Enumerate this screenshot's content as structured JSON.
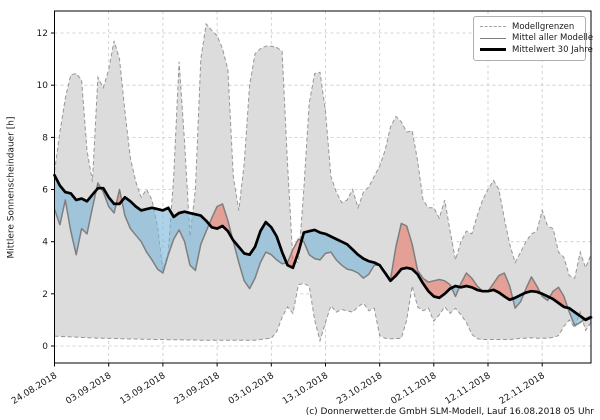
{
  "footer": "(c) Donnerwetter.de GmbH SLM-Modell, Lauf 16.08.2018 05 Uhr",
  "chart_data": {
    "type": "line",
    "title": "",
    "ylabel": "Mittlere Sonnenscheindauer [h]",
    "xlabel": "",
    "grid": true,
    "legend_position": "top-right",
    "legend": [
      "Modellgrenzen",
      "Mittel aller Modelle",
      "Mittelwert 30 Jahre"
    ],
    "y_ticks": [
      0,
      2,
      4,
      6,
      8,
      10,
      12
    ],
    "ylim": [
      -0.65,
      12.85
    ],
    "x_tick_labels": [
      "24.08.2018",
      "03.09.2018",
      "13.09.2018",
      "23.09.2018",
      "03.10.2018",
      "13.10.2018",
      "23.10.2018",
      "02.11.2018",
      "12.11.2018",
      "22.11.2018"
    ],
    "x_tick_days": [
      0,
      10,
      20,
      30,
      40,
      50,
      60,
      70,
      80,
      90
    ],
    "x_unit": "days since 24.08.2018, daily values",
    "x_days_total": 99,
    "colors": {
      "band_fill": "#dcdcdc",
      "bound_line": "#969696",
      "model_mean_line": "#7f7f7f",
      "climate_mean_line": "#000000",
      "below_fill": "rgba(120,180,215,0.60)",
      "above_fill": "rgba(235,110,95,0.55)",
      "gridline": "#c9c9c9"
    },
    "series": [
      {
        "name": "Modellgrenzen (obere Grenze)",
        "role": "model_max",
        "values": [
          6.7,
          8.2,
          9.5,
          10.4,
          10.45,
          10.2,
          7.5,
          6.3,
          10.3,
          9.9,
          10.6,
          11.7,
          11.0,
          9.0,
          7.2,
          6.3,
          5.7,
          6.0,
          5.6,
          4.6,
          2.9,
          3.6,
          6.5,
          10.9,
          7.8,
          4.2,
          6.0,
          11.0,
          12.35,
          12.1,
          11.9,
          11.4,
          10.6,
          6.5,
          5.2,
          7.0,
          10.0,
          11.2,
          11.4,
          11.5,
          11.5,
          11.45,
          11.3,
          7.0,
          3.3,
          3.2,
          6.0,
          9.3,
          10.45,
          10.5,
          9.0,
          6.5,
          5.9,
          5.5,
          5.6,
          6.0,
          5.3,
          5.9,
          6.1,
          6.5,
          6.9,
          7.5,
          8.4,
          8.8,
          8.6,
          8.2,
          8.25,
          7.1,
          5.6,
          5.3,
          5.3,
          4.9,
          5.6,
          4.4,
          3.3,
          4.0,
          4.4,
          4.3,
          5.0,
          5.6,
          6.0,
          6.35,
          6.0,
          4.9,
          3.9,
          3.2,
          3.6,
          4.0,
          4.3,
          4.4,
          5.2,
          4.6,
          4.5,
          3.6,
          3.4,
          2.7,
          2.6,
          3.6,
          3.0,
          3.5
        ]
      },
      {
        "name": "Modellgrenzen (untere Grenze)",
        "role": "model_min",
        "values": [
          0.38,
          0.37,
          0.36,
          0.35,
          0.34,
          0.33,
          0.32,
          0.31,
          0.3,
          0.3,
          0.29,
          0.29,
          0.28,
          0.28,
          0.27,
          0.27,
          0.26,
          0.26,
          0.25,
          0.25,
          0.25,
          0.24,
          0.24,
          0.24,
          0.23,
          0.23,
          0.23,
          0.22,
          0.22,
          0.22,
          0.22,
          0.22,
          0.22,
          0.22,
          0.22,
          0.22,
          0.22,
          0.22,
          0.25,
          0.28,
          0.3,
          0.55,
          1.1,
          1.5,
          1.25,
          2.35,
          2.4,
          2.3,
          1.0,
          0.2,
          0.9,
          1.55,
          1.3,
          1.4,
          1.35,
          1.3,
          1.5,
          1.65,
          1.35,
          1.45,
          0.4,
          0.3,
          0.28,
          0.28,
          0.3,
          1.0,
          2.3,
          1.5,
          1.35,
          1.45,
          0.95,
          1.2,
          1.5,
          1.25,
          1.45,
          1.2,
          0.9,
          0.45,
          0.28,
          0.25,
          0.25,
          0.25,
          0.25,
          0.25,
          0.25,
          0.27,
          0.3,
          0.3,
          0.32,
          0.3,
          0.3,
          0.3,
          0.33,
          0.4,
          0.75,
          1.0,
          0.7,
          1.3,
          0.6,
          0.9
        ]
      },
      {
        "name": "Mittel aller Modelle",
        "role": "model_mean",
        "values": [
          5.25,
          4.65,
          5.6,
          4.4,
          3.5,
          4.5,
          4.3,
          5.3,
          6.25,
          5.9,
          5.35,
          5.1,
          6.0,
          5.0,
          4.5,
          4.25,
          4.0,
          3.6,
          3.3,
          2.95,
          2.8,
          3.5,
          4.1,
          4.45,
          4.0,
          3.1,
          2.9,
          3.9,
          4.4,
          4.9,
          5.35,
          5.45,
          4.8,
          4.0,
          3.2,
          2.5,
          2.2,
          2.6,
          3.2,
          3.6,
          3.5,
          3.3,
          3.15,
          3.2,
          3.7,
          4.1,
          4.0,
          3.5,
          3.35,
          3.3,
          3.55,
          3.6,
          3.3,
          3.1,
          2.95,
          2.9,
          2.8,
          2.6,
          2.75,
          3.1,
          3.1,
          2.85,
          2.55,
          3.8,
          4.7,
          4.6,
          3.9,
          2.9,
          2.6,
          2.45,
          2.5,
          2.55,
          2.5,
          2.35,
          1.9,
          2.4,
          2.8,
          2.6,
          2.3,
          2.1,
          2.1,
          2.4,
          2.7,
          2.8,
          2.3,
          1.45,
          1.7,
          2.2,
          2.65,
          2.3,
          1.9,
          1.75,
          2.1,
          2.25,
          1.9,
          1.3,
          0.78,
          0.9,
          1.05,
          1.15
        ]
      },
      {
        "name": "Mittelwert 30 Jahre",
        "role": "climate_mean",
        "values": [
          6.55,
          6.15,
          5.9,
          5.85,
          5.6,
          5.65,
          5.55,
          5.8,
          6.05,
          6.05,
          5.7,
          5.45,
          5.45,
          5.7,
          5.55,
          5.35,
          5.2,
          5.25,
          5.3,
          5.25,
          5.2,
          5.3,
          4.95,
          5.1,
          5.15,
          5.1,
          5.05,
          5.0,
          4.8,
          4.55,
          4.5,
          4.6,
          4.4,
          4.05,
          3.8,
          3.55,
          3.5,
          3.8,
          4.4,
          4.75,
          4.55,
          4.2,
          3.6,
          3.1,
          3.0,
          3.6,
          4.35,
          4.4,
          4.45,
          4.35,
          4.3,
          4.2,
          4.1,
          4.0,
          3.9,
          3.7,
          3.5,
          3.35,
          3.25,
          3.2,
          3.1,
          2.8,
          2.5,
          2.7,
          2.95,
          3.0,
          2.95,
          2.75,
          2.4,
          2.1,
          1.9,
          1.85,
          2.0,
          2.2,
          2.3,
          2.25,
          2.3,
          2.25,
          2.15,
          2.1,
          2.1,
          2.15,
          2.05,
          1.9,
          1.77,
          1.85,
          1.95,
          2.05,
          2.1,
          2.08,
          2.0,
          1.9,
          1.8,
          1.65,
          1.5,
          1.45,
          1.3,
          1.15,
          1.0,
          1.1
        ]
      }
    ]
  }
}
